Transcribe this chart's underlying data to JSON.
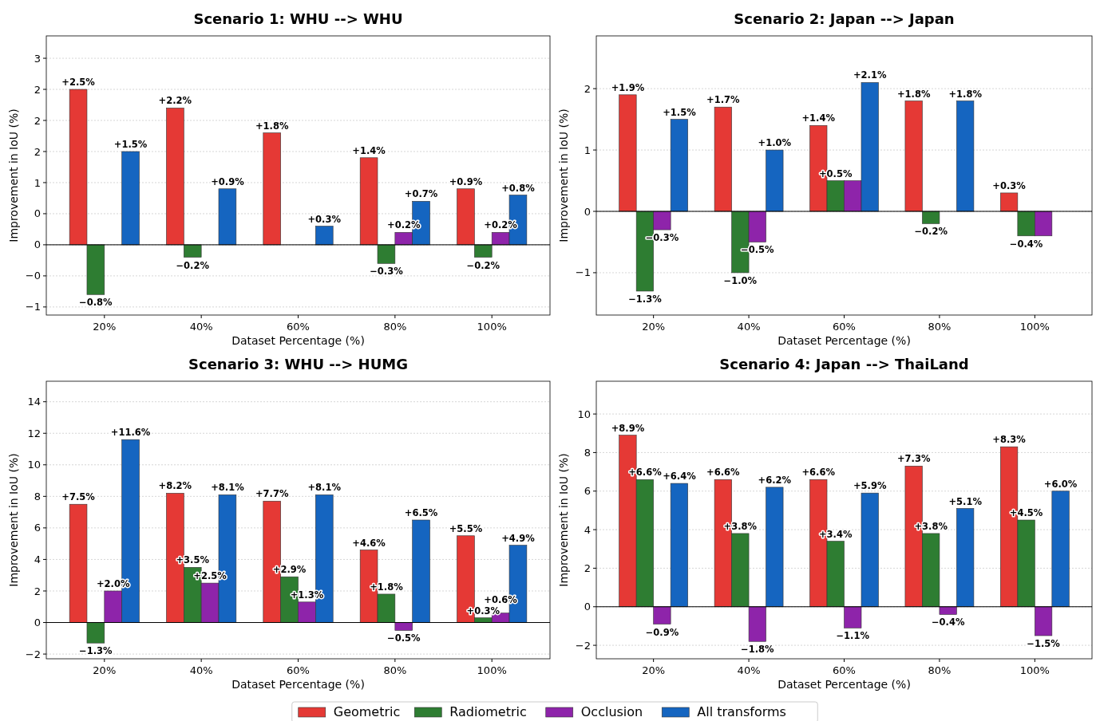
{
  "chart_data": [
    {
      "type": "bar",
      "title": "Scenario 1: WHU --> WHU",
      "xlabel": "Dataset Percentage (%)",
      "ylabel": "Improvement in IoU (%)",
      "categories": [
        "20%",
        "40%",
        "60%",
        "80%",
        "100%"
      ],
      "ylim": [
        -1.13,
        3.36
      ],
      "yticks": [
        {
          "value": -1,
          "label": "−1"
        },
        {
          "value": -0.5,
          "label": "−0"
        },
        {
          "value": 0,
          "label": "0"
        },
        {
          "value": 0.5,
          "label": "0"
        },
        {
          "value": 1,
          "label": "1"
        },
        {
          "value": 1.5,
          "label": "2"
        },
        {
          "value": 2,
          "label": "2"
        },
        {
          "value": 2.5,
          "label": "2"
        },
        {
          "value": 3,
          "label": "3"
        }
      ],
      "grid": "y",
      "ref_lines": [
        {
          "axis": "y",
          "value": 0,
          "color": "#000000"
        }
      ],
      "series": [
        {
          "color": "#e53935",
          "values": [
            2.5,
            2.2,
            1.8,
            1.4,
            0.9
          ],
          "value_labels": [
            "+2.5%",
            "+2.2%",
            "+1.8%",
            "+1.4%",
            "+0.9%"
          ]
        },
        {
          "color": "#2e7d32",
          "values": [
            -0.8,
            -0.2,
            null,
            -0.3,
            -0.2
          ],
          "value_labels": [
            "−0.8%",
            "−0.2%",
            null,
            "−0.3%",
            "−0.2%"
          ]
        },
        {
          "color": "#8e24aa",
          "values": [
            null,
            null,
            null,
            0.2,
            0.2
          ],
          "value_labels": [
            null,
            null,
            null,
            "+0.2%",
            "+0.2%"
          ]
        },
        {
          "color": "#1565c0",
          "values": [
            1.5,
            0.9,
            0.3,
            0.7,
            0.8
          ],
          "value_labels": [
            "+1.5%",
            "+0.9%",
            "+0.3%",
            "+0.7%",
            "+0.8%"
          ]
        }
      ]
    },
    {
      "type": "bar",
      "title": "Scenario 2: Japan --> Japan",
      "xlabel": "Dataset Percentage (%)",
      "ylabel": "Improvement in IoU (%)",
      "categories": [
        "20%",
        "40%",
        "60%",
        "80%",
        "100%"
      ],
      "ylim": [
        -1.69,
        2.86
      ],
      "yticks": [
        -1,
        0,
        1,
        2
      ],
      "grid": "y",
      "ref_lines": [
        {
          "axis": "y",
          "value": 0,
          "color": "#000000"
        }
      ],
      "series": [
        {
          "color": "#e53935",
          "values": [
            1.9,
            1.7,
            1.4,
            1.8,
            0.3
          ],
          "value_labels": [
            "+1.9%",
            "+1.7%",
            "+1.4%",
            "+1.8%",
            "+0.3%"
          ]
        },
        {
          "color": "#2e7d32",
          "values": [
            -1.3,
            -1.0,
            0.5,
            -0.2,
            -0.4
          ],
          "value_labels": [
            "−1.3%",
            "−1.0%",
            "+0.5%",
            "−0.2%",
            "−0.4%"
          ]
        },
        {
          "color": "#8e24aa",
          "values": [
            -0.3,
            -0.5,
            0.5,
            null,
            -0.4
          ],
          "value_labels": [
            "−0.3%",
            "−0.5%",
            null,
            null,
            null
          ]
        },
        {
          "color": "#1565c0",
          "values": [
            1.5,
            1.0,
            2.1,
            1.8,
            null
          ],
          "value_labels": [
            "+1.5%",
            "+1.0%",
            "+2.1%",
            "+1.8%",
            null
          ]
        }
      ]
    },
    {
      "type": "bar",
      "title": "Scenario 3: WHU --> HUMG",
      "xlabel": "Dataset Percentage (%)",
      "ylabel": "Improvement in IoU (%)",
      "categories": [
        "20%",
        "40%",
        "60%",
        "80%",
        "100%"
      ],
      "ylim": [
        -2.3,
        15.3
      ],
      "yticks": [
        -2,
        0,
        2,
        4,
        6,
        8,
        10,
        12,
        14
      ],
      "grid": "y",
      "ref_lines": [
        {
          "axis": "y",
          "value": 0,
          "color": "#000000"
        }
      ],
      "series": [
        {
          "color": "#e53935",
          "values": [
            7.5,
            8.2,
            7.7,
            4.6,
            5.5
          ],
          "value_labels": [
            "+7.5%",
            "+8.2%",
            "+7.7%",
            "+4.6%",
            "+5.5%"
          ]
        },
        {
          "color": "#2e7d32",
          "values": [
            -1.3,
            3.5,
            2.9,
            1.8,
            0.3
          ],
          "value_labels": [
            "−1.3%",
            "+3.5%",
            "+2.9%",
            "+1.8%",
            "+0.3%"
          ]
        },
        {
          "color": "#8e24aa",
          "values": [
            2.0,
            2.5,
            1.3,
            -0.5,
            0.6
          ],
          "value_labels": [
            "+2.0%",
            "+2.5%",
            "+1.3%",
            "−0.5%",
            "+0.6%"
          ]
        },
        {
          "color": "#1565c0",
          "values": [
            11.6,
            8.1,
            8.1,
            6.5,
            4.9
          ],
          "value_labels": [
            "+11.6%",
            "+8.1%",
            "+8.1%",
            "+6.5%",
            "+4.9%"
          ]
        }
      ]
    },
    {
      "type": "bar",
      "title": "Scenario 4: Japan --> ThaiLand",
      "xlabel": "Dataset Percentage (%)",
      "ylabel": "Improvement in IoU (%)",
      "categories": [
        "20%",
        "40%",
        "60%",
        "80%",
        "100%"
      ],
      "ylim": [
        -2.7,
        11.7
      ],
      "yticks": [
        -2,
        0,
        2,
        4,
        6,
        8,
        10
      ],
      "grid": "y",
      "legend": "bottom",
      "ref_lines": [
        {
          "axis": "y",
          "value": 0,
          "color": "#000000"
        }
      ],
      "series": [
        {
          "name": "Geometric",
          "color": "#e53935",
          "values": [
            8.9,
            6.6,
            6.6,
            7.3,
            8.3
          ],
          "value_labels": [
            "+8.9%",
            "+6.6%",
            "+6.6%",
            "+7.3%",
            "+8.3%"
          ]
        },
        {
          "name": "Radiometric",
          "color": "#2e7d32",
          "values": [
            6.6,
            3.8,
            3.4,
            3.8,
            4.5
          ],
          "value_labels": [
            "+6.6%",
            "+3.8%",
            "+3.4%",
            "+3.8%",
            "+4.5%"
          ]
        },
        {
          "name": "Occlusion",
          "color": "#8e24aa",
          "values": [
            -0.9,
            -1.8,
            -1.1,
            -0.4,
            -1.5
          ],
          "value_labels": [
            "−0.9%",
            "−1.8%",
            "−1.1%",
            "−0.4%",
            "−1.5%"
          ]
        },
        {
          "name": "All transforms",
          "color": "#1565c0",
          "values": [
            6.4,
            6.2,
            5.9,
            5.1,
            6.0
          ],
          "value_labels": [
            "+6.4%",
            "+6.2%",
            "+5.9%",
            "+5.1%",
            "+6.0%"
          ]
        }
      ]
    }
  ]
}
